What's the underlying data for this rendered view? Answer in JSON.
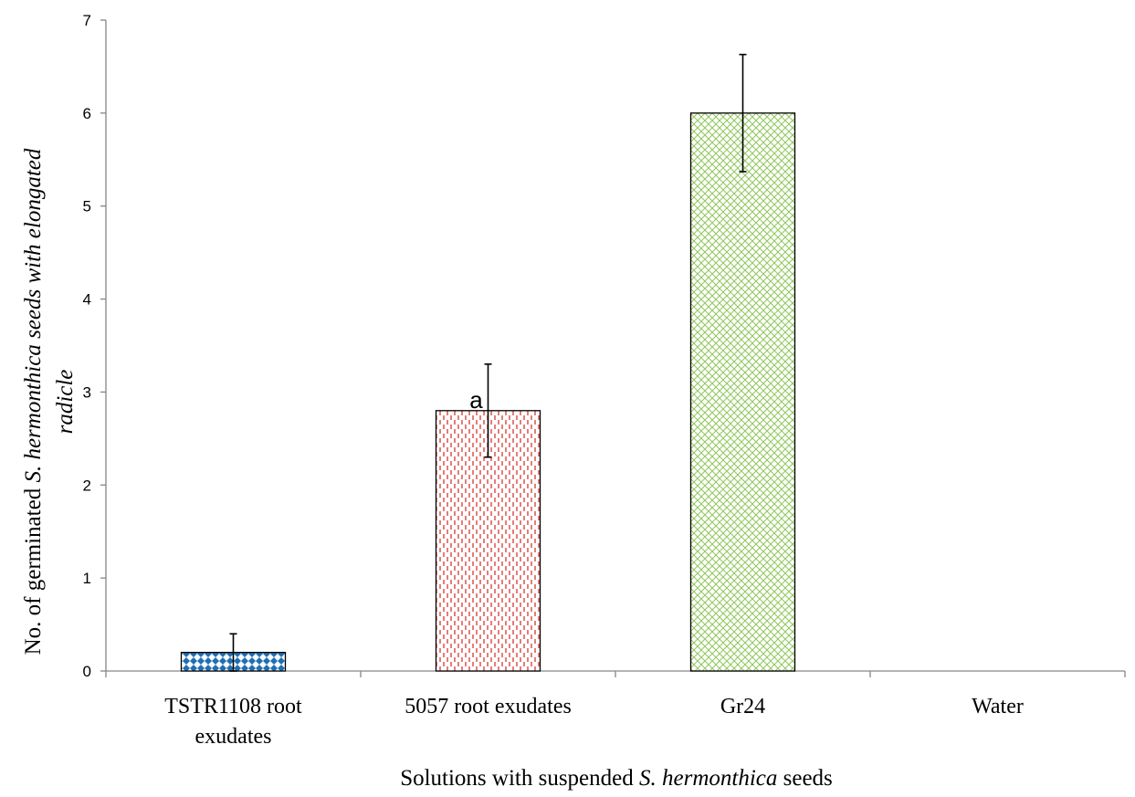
{
  "chart_data": {
    "type": "bar",
    "categories": [
      [
        "TSTR1108 root",
        "exudates"
      ],
      [
        "5057 root exudates"
      ],
      [
        "Gr24"
      ],
      [
        "Water"
      ]
    ],
    "values": [
      0.2,
      2.8,
      6.0,
      0
    ],
    "errors": [
      0.2,
      0.5,
      0.63,
      0
    ],
    "annotations": [
      {
        "category": 1,
        "text": "a"
      }
    ],
    "ylim": [
      0,
      7
    ],
    "yticks": [
      "0",
      "1",
      "2",
      "3",
      "4",
      "5",
      "6",
      "7"
    ],
    "xlabel": {
      "prefix": "Solutions with suspended ",
      "italic": "S. hermonthica",
      "suffix": " seeds"
    },
    "ylabel": {
      "line1_prefix": "No. of  germinated ",
      "line1_species": "S. hermonthica",
      "line1_italic_rest": " seeds with elongated",
      "line2_italic": "radicle"
    },
    "bar_colors": [
      "#1f6fb5",
      "#d9473f",
      "#8fc75a"
    ],
    "grid": false
  }
}
